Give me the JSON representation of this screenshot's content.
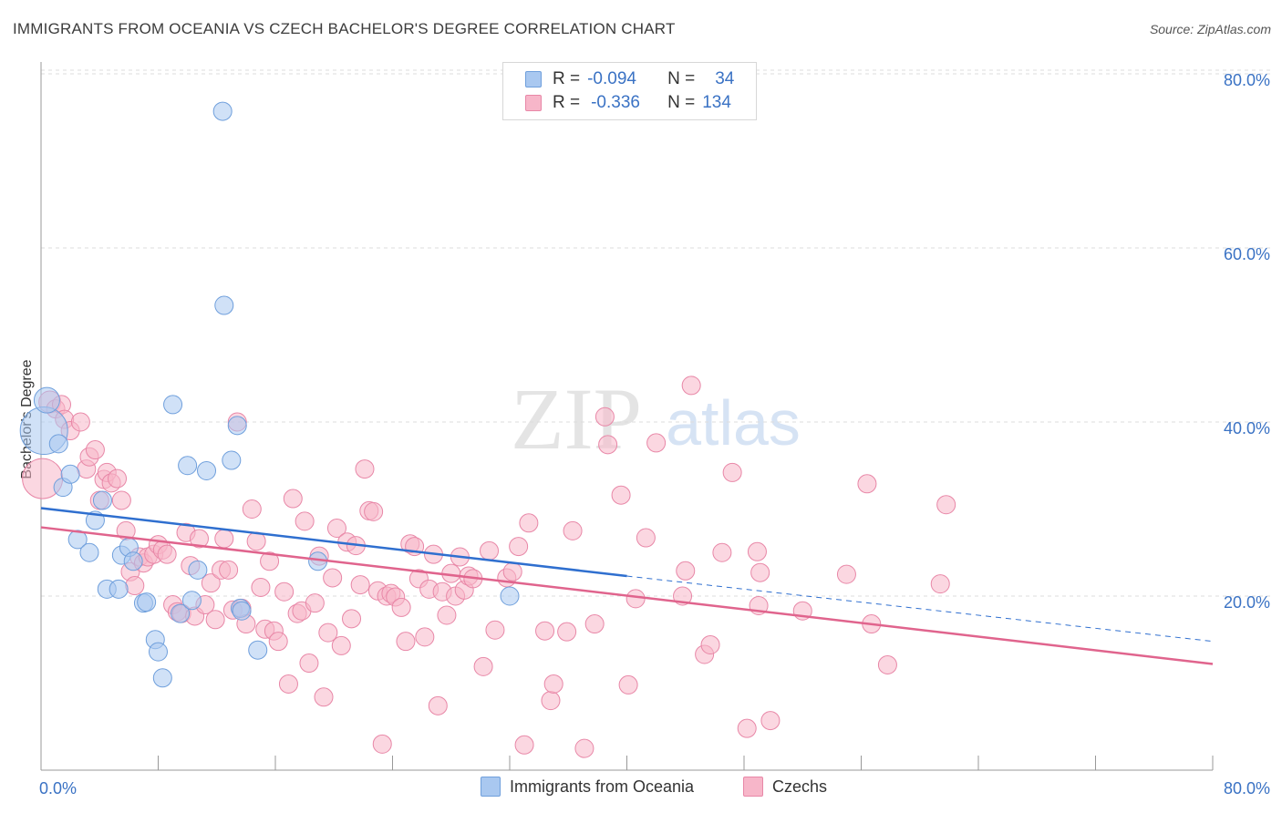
{
  "header": {
    "title": "IMMIGRANTS FROM OCEANIA VS CZECH BACHELOR'S DEGREE CORRELATION CHART",
    "source": "Source: ZipAtlas.com"
  },
  "watermark": {
    "zip": "ZIP",
    "atlas": "atlas"
  },
  "legend": {
    "rows": [
      {
        "r_label": "R =",
        "r_value": "-0.094",
        "n_label": "N =",
        "n_value": "34",
        "color": "#a9c8f0",
        "border": "#6f9fdc"
      },
      {
        "r_label": "R =",
        "r_value": "-0.336",
        "n_label": "N =",
        "n_value": "134",
        "color": "#f7b6c9",
        "border": "#e887a7"
      }
    ]
  },
  "bottom_legend": [
    {
      "label": "Immigrants from Oceania",
      "color": "#a9c8f0",
      "border": "#6f9fdc"
    },
    {
      "label": "Czechs",
      "color": "#f7b6c9",
      "border": "#e887a7"
    }
  ],
  "chart_data": {
    "type": "scatter",
    "title": "IMMIGRANTS FROM OCEANIA VS CZECH BACHELOR'S DEGREE CORRELATION CHART",
    "xlabel": "",
    "ylabel": "Bachelor's Degree",
    "xlim": [
      0,
      80
    ],
    "ylim": [
      0,
      80
    ],
    "x_tick_labels": [
      "0.0%",
      "80.0%"
    ],
    "y_ticks": [
      20,
      40,
      60,
      80
    ],
    "y_tick_labels": [
      "20.0%",
      "40.0%",
      "60.0%",
      "80.0%"
    ],
    "grid": true,
    "legend_position": "top-center",
    "series": [
      {
        "name": "Immigrants from Oceania",
        "color": "#6f9fdc",
        "fill": "#a9c8f0",
        "trend": {
          "x": [
            0,
            40
          ],
          "y": [
            30.1,
            22.3
          ],
          "dashed_to": [
            80,
            14.8
          ],
          "color": "#2f6fcf"
        },
        "points": [
          [
            0.2,
            39.0,
            26
          ],
          [
            0.4,
            42.5,
            14
          ],
          [
            1.2,
            37.5,
            10
          ],
          [
            1.5,
            32.5,
            10
          ],
          [
            2.0,
            34.0,
            10
          ],
          [
            2.5,
            26.5,
            10
          ],
          [
            3.3,
            25.0,
            10
          ],
          [
            3.7,
            28.7,
            10
          ],
          [
            4.2,
            31.0,
            10
          ],
          [
            4.5,
            20.8,
            10
          ],
          [
            5.3,
            20.8,
            10
          ],
          [
            5.5,
            24.7,
            10
          ],
          [
            6.0,
            25.6,
            10
          ],
          [
            6.3,
            24.0,
            10
          ],
          [
            7.0,
            19.2,
            10
          ],
          [
            7.2,
            19.3,
            10
          ],
          [
            7.8,
            15.0,
            10
          ],
          [
            8.0,
            13.6,
            10
          ],
          [
            8.3,
            10.6,
            10
          ],
          [
            9.0,
            42.0,
            10
          ],
          [
            9.5,
            18.0,
            10
          ],
          [
            10.0,
            35.0,
            10
          ],
          [
            10.3,
            19.5,
            10
          ],
          [
            10.7,
            23.0,
            10
          ],
          [
            11.3,
            34.4,
            10
          ],
          [
            12.4,
            75.7,
            10
          ],
          [
            12.5,
            53.4,
            10
          ],
          [
            13.0,
            35.6,
            10
          ],
          [
            13.4,
            39.6,
            10
          ],
          [
            13.6,
            18.6,
            10
          ],
          [
            13.7,
            18.3,
            10
          ],
          [
            14.8,
            13.8,
            10
          ],
          [
            18.9,
            24.0,
            10
          ],
          [
            32.0,
            20.0,
            10
          ]
        ]
      },
      {
        "name": "Czechs",
        "color": "#e887a7",
        "fill": "#f7b6c9",
        "trend": {
          "x": [
            0,
            80
          ],
          "y": [
            27.9,
            12.2
          ],
          "color": "#e0648d"
        },
        "points": [
          [
            0.1,
            33.5,
            22
          ],
          [
            0.6,
            42.3,
            12
          ],
          [
            1.0,
            41.5,
            10
          ],
          [
            1.4,
            42.0,
            10
          ],
          [
            1.6,
            40.3,
            10
          ],
          [
            2.0,
            39.0,
            10
          ],
          [
            2.7,
            40.0,
            10
          ],
          [
            3.1,
            34.6,
            10
          ],
          [
            3.3,
            36.0,
            10
          ],
          [
            3.7,
            36.8,
            10
          ],
          [
            4.0,
            31.0,
            10
          ],
          [
            4.3,
            33.4,
            10
          ],
          [
            4.5,
            34.2,
            10
          ],
          [
            4.8,
            33.0,
            10
          ],
          [
            5.2,
            33.5,
            10
          ],
          [
            5.5,
            31.0,
            10
          ],
          [
            5.8,
            27.5,
            10
          ],
          [
            6.1,
            22.8,
            10
          ],
          [
            6.4,
            21.2,
            10
          ],
          [
            6.7,
            24.5,
            10
          ],
          [
            7.0,
            23.8,
            10
          ],
          [
            7.3,
            24.5,
            10
          ],
          [
            7.7,
            24.8,
            10
          ],
          [
            8.0,
            25.9,
            10
          ],
          [
            8.3,
            25.3,
            10
          ],
          [
            8.6,
            24.8,
            10
          ],
          [
            9.0,
            19.0,
            10
          ],
          [
            9.3,
            18.2,
            10
          ],
          [
            9.6,
            18.0,
            10
          ],
          [
            9.9,
            27.3,
            10
          ],
          [
            10.2,
            23.5,
            10
          ],
          [
            10.5,
            17.7,
            10
          ],
          [
            10.8,
            26.6,
            10
          ],
          [
            11.2,
            19.0,
            10
          ],
          [
            11.6,
            21.5,
            10
          ],
          [
            11.9,
            17.3,
            10
          ],
          [
            12.3,
            23.0,
            10
          ],
          [
            12.5,
            26.6,
            10
          ],
          [
            12.8,
            23.0,
            10
          ],
          [
            13.1,
            18.4,
            10
          ],
          [
            13.4,
            40.0,
            10
          ],
          [
            13.7,
            18.6,
            10
          ],
          [
            14.0,
            16.8,
            10
          ],
          [
            14.4,
            30.0,
            10
          ],
          [
            14.7,
            26.3,
            10
          ],
          [
            15.0,
            21.0,
            10
          ],
          [
            15.3,
            16.2,
            10
          ],
          [
            15.6,
            24.0,
            10
          ],
          [
            15.9,
            16.0,
            10
          ],
          [
            16.2,
            14.8,
            10
          ],
          [
            16.6,
            20.5,
            10
          ],
          [
            16.9,
            9.9,
            10
          ],
          [
            17.2,
            31.2,
            10
          ],
          [
            17.5,
            18.0,
            10
          ],
          [
            17.8,
            18.3,
            10
          ],
          [
            18.0,
            28.6,
            10
          ],
          [
            18.3,
            12.3,
            10
          ],
          [
            18.7,
            19.2,
            10
          ],
          [
            19.0,
            24.6,
            10
          ],
          [
            19.3,
            8.4,
            10
          ],
          [
            19.6,
            15.8,
            10
          ],
          [
            19.9,
            22.1,
            10
          ],
          [
            20.2,
            27.8,
            10
          ],
          [
            20.5,
            14.3,
            10
          ],
          [
            20.9,
            26.2,
            10
          ],
          [
            21.2,
            17.4,
            10
          ],
          [
            21.5,
            25.8,
            10
          ],
          [
            21.8,
            21.3,
            10
          ],
          [
            22.1,
            34.6,
            10
          ],
          [
            22.4,
            29.8,
            10
          ],
          [
            22.7,
            29.7,
            10
          ],
          [
            23.0,
            20.6,
            10
          ],
          [
            23.3,
            3.0,
            10
          ],
          [
            23.6,
            20.0,
            10
          ],
          [
            23.9,
            20.3,
            10
          ],
          [
            24.2,
            19.9,
            10
          ],
          [
            24.6,
            18.7,
            10
          ],
          [
            24.9,
            14.8,
            10
          ],
          [
            25.2,
            26.0,
            10
          ],
          [
            25.5,
            25.7,
            10
          ],
          [
            25.8,
            22.0,
            10
          ],
          [
            26.2,
            15.3,
            10
          ],
          [
            26.5,
            20.8,
            10
          ],
          [
            26.8,
            24.8,
            10
          ],
          [
            27.1,
            7.4,
            10
          ],
          [
            27.4,
            20.5,
            10
          ],
          [
            27.7,
            17.8,
            10
          ],
          [
            28.0,
            22.6,
            10
          ],
          [
            28.3,
            20.0,
            10
          ],
          [
            28.6,
            24.5,
            10
          ],
          [
            28.9,
            20.7,
            10
          ],
          [
            29.2,
            22.3,
            10
          ],
          [
            29.5,
            22.0,
            10
          ],
          [
            30.2,
            11.9,
            10
          ],
          [
            30.6,
            25.2,
            10
          ],
          [
            31.0,
            16.1,
            10
          ],
          [
            31.8,
            22.1,
            10
          ],
          [
            32.2,
            22.8,
            10
          ],
          [
            32.6,
            25.7,
            10
          ],
          [
            33.0,
            2.9,
            10
          ],
          [
            33.3,
            28.4,
            10
          ],
          [
            34.4,
            16.0,
            10
          ],
          [
            34.8,
            8.0,
            10
          ],
          [
            35.0,
            9.9,
            10
          ],
          [
            35.9,
            15.9,
            10
          ],
          [
            36.3,
            27.5,
            10
          ],
          [
            37.1,
            2.5,
            10
          ],
          [
            37.8,
            16.8,
            10
          ],
          [
            38.5,
            40.6,
            10
          ],
          [
            38.7,
            37.4,
            10
          ],
          [
            39.6,
            31.6,
            10
          ],
          [
            40.1,
            9.8,
            10
          ],
          [
            40.6,
            19.7,
            10
          ],
          [
            41.3,
            26.7,
            10
          ],
          [
            42.0,
            37.6,
            10
          ],
          [
            44.4,
            44.2,
            10
          ],
          [
            44.0,
            22.9,
            10
          ],
          [
            45.3,
            13.3,
            10
          ],
          [
            45.7,
            14.4,
            10
          ],
          [
            46.5,
            25.0,
            10
          ],
          [
            47.2,
            34.2,
            10
          ],
          [
            48.2,
            4.8,
            10
          ],
          [
            49.0,
            18.9,
            10
          ],
          [
            48.9,
            25.1,
            10
          ],
          [
            49.1,
            22.7,
            10
          ],
          [
            49.8,
            5.7,
            10
          ],
          [
            52.0,
            18.3,
            10
          ],
          [
            56.4,
            32.9,
            10
          ],
          [
            56.7,
            16.8,
            10
          ],
          [
            57.8,
            12.1,
            10
          ],
          [
            61.4,
            21.4,
            10
          ],
          [
            61.8,
            30.5,
            10
          ],
          [
            43.8,
            20.0,
            10
          ],
          [
            55.0,
            22.5,
            10
          ]
        ]
      }
    ]
  }
}
